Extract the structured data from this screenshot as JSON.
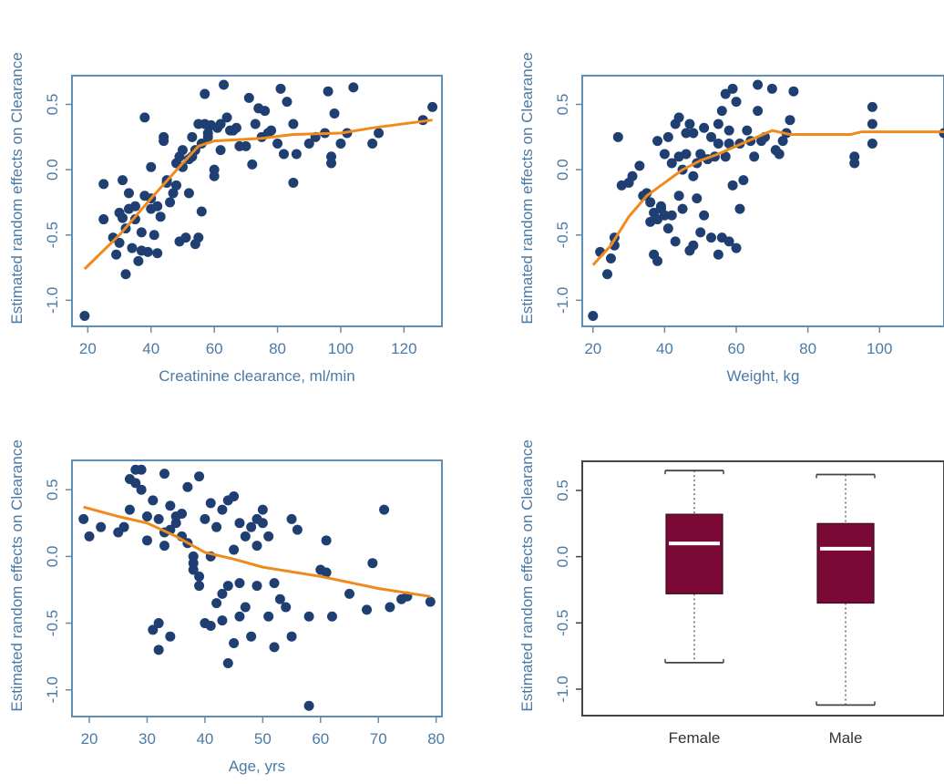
{
  "chart_data": [
    {
      "id": "panel-creatinine",
      "type": "scatter",
      "xlabel": "Creatinine clearance, ml/min",
      "ylabel": "Estimated random effects on Clearance",
      "xlim": [
        15,
        132
      ],
      "ylim": [
        -1.2,
        0.72
      ],
      "xticks": [
        20,
        40,
        60,
        80,
        100,
        120
      ],
      "yticks": [
        -1.0,
        -0.5,
        0.0,
        0.5
      ],
      "ytick_labels": [
        "-1.0",
        "-0.5",
        "0.0",
        "0.5"
      ],
      "colors": {
        "points": "#1f3f73",
        "smooth": "#f08a1c",
        "frame": "#5f8fb4"
      },
      "points": [
        [
          19,
          -1.12
        ],
        [
          25,
          -0.11
        ],
        [
          25,
          -0.38
        ],
        [
          28,
          -0.52
        ],
        [
          29,
          -0.65
        ],
        [
          30,
          -0.56
        ],
        [
          30,
          -0.33
        ],
        [
          31,
          -0.08
        ],
        [
          31,
          -0.37
        ],
        [
          32,
          -0.8
        ],
        [
          32,
          -0.45
        ],
        [
          33,
          -0.3
        ],
        [
          33,
          -0.18
        ],
        [
          34,
          -0.6
        ],
        [
          35,
          -0.38
        ],
        [
          35,
          -0.28
        ],
        [
          36,
          -0.7
        ],
        [
          37,
          -0.48
        ],
        [
          37,
          -0.62
        ],
        [
          38,
          0.4
        ],
        [
          38,
          -0.2
        ],
        [
          39,
          -0.63
        ],
        [
          40,
          -0.3
        ],
        [
          40,
          -0.22
        ],
        [
          40,
          0.02
        ],
        [
          41,
          -0.5
        ],
        [
          42,
          -0.28
        ],
        [
          42,
          -0.64
        ],
        [
          43,
          -0.36
        ],
        [
          44,
          0.25
        ],
        [
          44,
          0.22
        ],
        [
          45,
          -0.08
        ],
        [
          45,
          -0.1
        ],
        [
          46,
          -0.25
        ],
        [
          47,
          -0.18
        ],
        [
          48,
          0.05
        ],
        [
          48,
          -0.12
        ],
        [
          49,
          -0.55
        ],
        [
          49,
          0.1
        ],
        [
          50,
          0.02
        ],
        [
          50,
          0.15
        ],
        [
          51,
          -0.52
        ],
        [
          52,
          0.08
        ],
        [
          52,
          -0.18
        ],
        [
          53,
          0.25
        ],
        [
          53,
          0.1
        ],
        [
          54,
          -0.57
        ],
        [
          54,
          0.15
        ],
        [
          55,
          0.35
        ],
        [
          55,
          -0.52
        ],
        [
          56,
          0.2
        ],
        [
          56,
          -0.32
        ],
        [
          57,
          0.58
        ],
        [
          57,
          0.35
        ],
        [
          58,
          0.28
        ],
        [
          58,
          0.25
        ],
        [
          59,
          0.34
        ],
        [
          60,
          0.0
        ],
        [
          60,
          -0.05
        ],
        [
          61,
          0.32
        ],
        [
          62,
          0.35
        ],
        [
          62,
          0.15
        ],
        [
          63,
          0.65
        ],
        [
          64,
          0.4
        ],
        [
          65,
          0.3
        ],
        [
          66,
          0.3
        ],
        [
          67,
          0.32
        ],
        [
          68,
          0.18
        ],
        [
          70,
          0.18
        ],
        [
          71,
          0.55
        ],
        [
          72,
          0.04
        ],
        [
          73,
          0.35
        ],
        [
          74,
          0.47
        ],
        [
          75,
          0.25
        ],
        [
          76,
          0.45
        ],
        [
          77,
          0.28
        ],
        [
          78,
          0.3
        ],
        [
          80,
          0.2
        ],
        [
          81,
          0.62
        ],
        [
          82,
          0.12
        ],
        [
          83,
          0.52
        ],
        [
          85,
          0.35
        ],
        [
          85,
          -0.1
        ],
        [
          86,
          0.12
        ],
        [
          90,
          0.2
        ],
        [
          92,
          0.25
        ],
        [
          95,
          0.28
        ],
        [
          96,
          0.6
        ],
        [
          97,
          0.1
        ],
        [
          97,
          0.05
        ],
        [
          98,
          0.43
        ],
        [
          100,
          0.2
        ],
        [
          102,
          0.28
        ],
        [
          104,
          0.63
        ],
        [
          110,
          0.2
        ],
        [
          112,
          0.28
        ],
        [
          126,
          0.38
        ],
        [
          129,
          0.48
        ]
      ],
      "smooth": [
        [
          19,
          -0.76
        ],
        [
          30,
          -0.5
        ],
        [
          40,
          -0.22
        ],
        [
          50,
          0.05
        ],
        [
          55,
          0.18
        ],
        [
          60,
          0.22
        ],
        [
          75,
          0.24
        ],
        [
          85,
          0.27
        ],
        [
          100,
          0.28
        ],
        [
          110,
          0.32
        ],
        [
          129,
          0.38
        ]
      ]
    },
    {
      "id": "panel-weight",
      "type": "scatter",
      "xlabel": "Weight, kg",
      "ylabel": "Estimated random effects on Clearance",
      "xlim": [
        17,
        118
      ],
      "ylim": [
        -1.2,
        0.72
      ],
      "xticks": [
        20,
        40,
        60,
        80,
        100
      ],
      "yticks": [
        -1.0,
        -0.5,
        0.0,
        0.5
      ],
      "ytick_labels": [
        "-1.0",
        "-0.5",
        "0.0",
        "0.5"
      ],
      "colors": {
        "points": "#1f3f73",
        "smooth": "#f08a1c",
        "frame": "#5f8fb4"
      },
      "points": [
        [
          20,
          -1.12
        ],
        [
          22,
          -0.63
        ],
        [
          24,
          -0.8
        ],
        [
          25,
          -0.68
        ],
        [
          26,
          -0.58
        ],
        [
          26,
          -0.52
        ],
        [
          27,
          0.25
        ],
        [
          28,
          -0.12
        ],
        [
          30,
          -0.1
        ],
        [
          31,
          -0.05
        ],
        [
          33,
          0.03
        ],
        [
          34,
          -0.2
        ],
        [
          35,
          -0.18
        ],
        [
          36,
          -0.25
        ],
        [
          36,
          -0.4
        ],
        [
          37,
          -0.33
        ],
        [
          37,
          -0.65
        ],
        [
          38,
          0.22
        ],
        [
          38,
          -0.38
        ],
        [
          38,
          -0.7
        ],
        [
          39,
          -0.28
        ],
        [
          39,
          -0.3
        ],
        [
          40,
          0.12
        ],
        [
          40,
          -0.35
        ],
        [
          41,
          0.25
        ],
        [
          41,
          -0.45
        ],
        [
          42,
          0.05
        ],
        [
          42,
          -0.35
        ],
        [
          43,
          0.35
        ],
        [
          43,
          -0.55
        ],
        [
          44,
          0.4
        ],
        [
          44,
          0.1
        ],
        [
          44,
          -0.2
        ],
        [
          45,
          0.0
        ],
        [
          45,
          -0.3
        ],
        [
          46,
          0.12
        ],
        [
          46,
          0.28
        ],
        [
          47,
          0.35
        ],
        [
          47,
          -0.62
        ],
        [
          48,
          0.28
        ],
        [
          48,
          -0.58
        ],
        [
          48,
          -0.05
        ],
        [
          49,
          0.05
        ],
        [
          49,
          -0.22
        ],
        [
          50,
          0.12
        ],
        [
          50,
          -0.48
        ],
        [
          51,
          0.32
        ],
        [
          51,
          -0.35
        ],
        [
          52,
          0.08
        ],
        [
          53,
          0.25
        ],
        [
          53,
          -0.52
        ],
        [
          54,
          0.1
        ],
        [
          55,
          0.35
        ],
        [
          55,
          0.2
        ],
        [
          55,
          -0.65
        ],
        [
          56,
          0.45
        ],
        [
          56,
          -0.52
        ],
        [
          57,
          0.58
        ],
        [
          57,
          0.1
        ],
        [
          58,
          0.2
        ],
        [
          58,
          0.3
        ],
        [
          58,
          -0.55
        ],
        [
          59,
          0.62
        ],
        [
          59,
          -0.12
        ],
        [
          60,
          0.52
        ],
        [
          60,
          -0.6
        ],
        [
          61,
          0.2
        ],
        [
          61,
          -0.3
        ],
        [
          62,
          -0.08
        ],
        [
          63,
          0.3
        ],
        [
          64,
          0.22
        ],
        [
          65,
          0.1
        ],
        [
          66,
          0.45
        ],
        [
          66,
          0.65
        ],
        [
          67,
          0.22
        ],
        [
          68,
          0.25
        ],
        [
          70,
          0.62
        ],
        [
          71,
          0.15
        ],
        [
          72,
          0.12
        ],
        [
          73,
          0.22
        ],
        [
          74,
          0.28
        ],
        [
          75,
          0.38
        ],
        [
          76,
          0.6
        ],
        [
          93,
          0.1
        ],
        [
          93,
          0.05
        ],
        [
          98,
          0.48
        ],
        [
          98,
          0.35
        ],
        [
          98,
          0.2
        ],
        [
          118,
          0.28
        ]
      ],
      "smooth": [
        [
          20,
          -0.73
        ],
        [
          25,
          -0.58
        ],
        [
          30,
          -0.36
        ],
        [
          35,
          -0.2
        ],
        [
          40,
          -0.1
        ],
        [
          45,
          0.0
        ],
        [
          50,
          0.07
        ],
        [
          55,
          0.12
        ],
        [
          60,
          0.18
        ],
        [
          70,
          0.3
        ],
        [
          75,
          0.27
        ],
        [
          92,
          0.27
        ],
        [
          95,
          0.29
        ],
        [
          118,
          0.29
        ]
      ]
    },
    {
      "id": "panel-age",
      "type": "scatter",
      "xlabel": "Age, yrs",
      "ylabel": "Estimated random effects on Clearance",
      "xlim": [
        17,
        81
      ],
      "ylim": [
        -1.2,
        0.72
      ],
      "xticks": [
        20,
        30,
        40,
        50,
        60,
        70,
        80
      ],
      "yticks": [
        -1.0,
        -0.5,
        0.0,
        0.5
      ],
      "ytick_labels": [
        "-1.0",
        "-0.5",
        "0.0",
        "0.5"
      ],
      "colors": {
        "points": "#1f3f73",
        "smooth": "#f08a1c",
        "frame": "#5f8fb4"
      },
      "points": [
        [
          19,
          0.28
        ],
        [
          20,
          0.15
        ],
        [
          22,
          0.22
        ],
        [
          25,
          0.18
        ],
        [
          26,
          0.22
        ],
        [
          27,
          0.58
        ],
        [
          27,
          0.35
        ],
        [
          28,
          0.65
        ],
        [
          28,
          0.55
        ],
        [
          29,
          0.65
        ],
        [
          29,
          0.5
        ],
        [
          30,
          0.3
        ],
        [
          30,
          0.12
        ],
        [
          31,
          -0.55
        ],
        [
          31,
          0.42
        ],
        [
          32,
          0.28
        ],
        [
          32,
          -0.7
        ],
        [
          32,
          -0.5
        ],
        [
          33,
          0.62
        ],
        [
          33,
          0.18
        ],
        [
          33,
          0.08
        ],
        [
          34,
          0.38
        ],
        [
          34,
          0.2
        ],
        [
          34,
          -0.6
        ],
        [
          35,
          0.25
        ],
        [
          35,
          0.3
        ],
        [
          36,
          0.32
        ],
        [
          36,
          0.15
        ],
        [
          37,
          0.52
        ],
        [
          37,
          0.1
        ],
        [
          38,
          -0.05
        ],
        [
          38,
          0.0
        ],
        [
          38,
          -0.1
        ],
        [
          39,
          0.6
        ],
        [
          39,
          -0.22
        ],
        [
          39,
          -0.15
        ],
        [
          40,
          0.28
        ],
        [
          40,
          -0.5
        ],
        [
          41,
          0.4
        ],
        [
          41,
          0.0
        ],
        [
          41,
          -0.52
        ],
        [
          42,
          0.22
        ],
        [
          42,
          -0.35
        ],
        [
          43,
          0.35
        ],
        [
          43,
          -0.28
        ],
        [
          43,
          -0.48
        ],
        [
          44,
          0.42
        ],
        [
          44,
          -0.22
        ],
        [
          44,
          -0.8
        ],
        [
          45,
          0.45
        ],
        [
          45,
          0.05
        ],
        [
          45,
          -0.65
        ],
        [
          46,
          0.25
        ],
        [
          46,
          -0.2
        ],
        [
          46,
          -0.45
        ],
        [
          47,
          0.15
        ],
        [
          47,
          -0.38
        ],
        [
          48,
          0.22
        ],
        [
          48,
          -0.6
        ],
        [
          49,
          0.28
        ],
        [
          49,
          0.08
        ],
        [
          49,
          -0.22
        ],
        [
          50,
          0.25
        ],
        [
          50,
          0.35
        ],
        [
          51,
          0.15
        ],
        [
          51,
          -0.45
        ],
        [
          52,
          -0.2
        ],
        [
          52,
          -0.68
        ],
        [
          53,
          -0.32
        ],
        [
          54,
          -0.38
        ],
        [
          55,
          -0.6
        ],
        [
          55,
          0.28
        ],
        [
          56,
          0.2
        ],
        [
          58,
          -0.45
        ],
        [
          58,
          -1.12
        ],
        [
          60,
          -0.1
        ],
        [
          61,
          0.12
        ],
        [
          61,
          -0.12
        ],
        [
          62,
          -0.45
        ],
        [
          65,
          -0.28
        ],
        [
          68,
          -0.4
        ],
        [
          69,
          -0.05
        ],
        [
          71,
          0.35
        ],
        [
          72,
          -0.38
        ],
        [
          74,
          -0.32
        ],
        [
          75,
          -0.3
        ],
        [
          79,
          -0.34
        ]
      ],
      "smooth": [
        [
          19,
          0.37
        ],
        [
          25,
          0.3
        ],
        [
          30,
          0.25
        ],
        [
          35,
          0.15
        ],
        [
          40,
          0.03
        ],
        [
          45,
          -0.02
        ],
        [
          50,
          -0.08
        ],
        [
          60,
          -0.15
        ],
        [
          70,
          -0.24
        ],
        [
          79,
          -0.3
        ]
      ]
    },
    {
      "id": "panel-sex",
      "type": "box",
      "xlabel": "",
      "ylabel": "Estimated random effects on Clearance",
      "ylim": [
        -1.2,
        0.72
      ],
      "yticks": [
        -1.0,
        -0.5,
        0.0,
        0.5
      ],
      "ytick_labels": [
        "-1.0",
        "-0.5",
        "0.0",
        "0.5"
      ],
      "categories": [
        "Female",
        "Male"
      ],
      "colors": {
        "box": "#7a0a35",
        "median": "#ffffff",
        "whisker": "#444444",
        "frame": "#444444"
      },
      "boxes": [
        {
          "whisker_low": -0.8,
          "q1": -0.28,
          "median": 0.1,
          "q3": 0.32,
          "whisker_high": 0.65
        },
        {
          "whisker_low": -1.12,
          "q1": -0.35,
          "median": 0.06,
          "q3": 0.25,
          "whisker_high": 0.62
        }
      ]
    }
  ]
}
